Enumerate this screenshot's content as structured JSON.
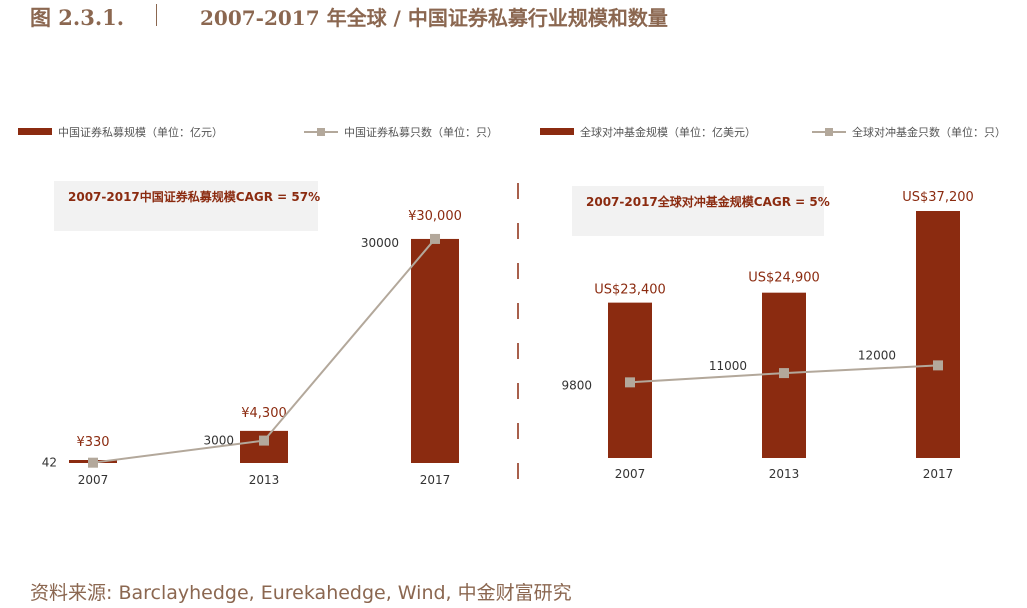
{
  "header": {
    "figure_number": "图 2.3.1.",
    "title": "2007-2017 年全球 / 中国证券私募行业规模和数量"
  },
  "source": "资料来源: Barclayhedge, Eurekahedge, Wind, 中金财富研究",
  "colors": {
    "bar": "#8b2b10",
    "line": "#b3a89b",
    "marker": "#b3a89b",
    "box": "#f2f2f2",
    "cagr_text": "#8b2b10",
    "bar_label": "#8b2b10",
    "axis_text": "#333333",
    "title": "#8b6750",
    "divider": "#8b2b10"
  },
  "chart_data": [
    {
      "type": "bar+line",
      "categories": [
        "2007",
        "2013",
        "2017"
      ],
      "series": [
        {
          "name": "中国证券私募规模（单位：亿元）",
          "kind": "bar",
          "values": [
            330,
            4300,
            30000
          ],
          "labels": [
            "¥330",
            "¥4,300",
            "¥30,000"
          ]
        },
        {
          "name": "中国证券私募只数（单位：只）",
          "kind": "line",
          "values": [
            42,
            3000,
            30000
          ],
          "labels": [
            "42",
            "3000",
            "30000"
          ]
        }
      ],
      "bar_ylim": [
        0,
        32000
      ],
      "line_ylim": [
        0,
        32000
      ],
      "annotation": "2007-2017中国证券私募规模CAGR = 57%",
      "xlabel": "",
      "ylabel": ""
    },
    {
      "type": "bar+line",
      "categories": [
        "2007",
        "2013",
        "2017"
      ],
      "series": [
        {
          "name": "全球对冲基金规模（单位：亿美元）",
          "kind": "bar",
          "values": [
            23400,
            24900,
            37200
          ],
          "labels": [
            "US$23,400",
            "US$24,900",
            "US$37,200"
          ]
        },
        {
          "name": "全球对冲基金只数（单位：只）",
          "kind": "line",
          "values": [
            9800,
            11000,
            12000
          ],
          "labels": [
            "9800",
            "11000",
            "12000"
          ]
        }
      ],
      "bar_ylim": [
        0,
        37200
      ],
      "line_ylim": [
        0,
        32000
      ],
      "annotation": "2007-2017全球对冲基金规模CAGR = 5%",
      "xlabel": "",
      "ylabel": ""
    }
  ]
}
